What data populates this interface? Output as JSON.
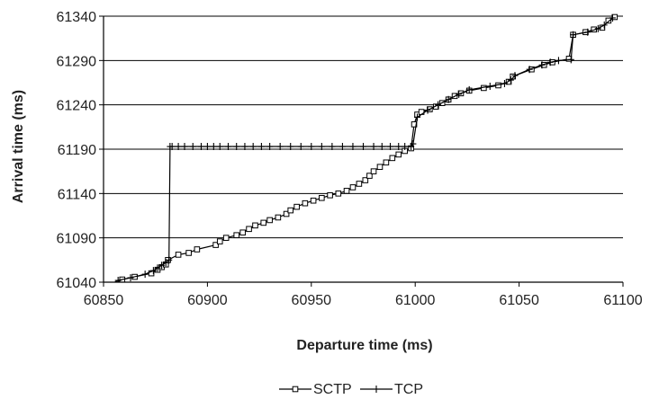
{
  "chart_data": {
    "type": "line",
    "title": "",
    "xlabel": "Departure time (ms)",
    "ylabel": "Arrival time (ms)",
    "xlim": [
      60850,
      61100
    ],
    "ylim": [
      61040,
      61340
    ],
    "x_ticks": [
      "60850",
      "60900",
      "60950",
      "61000",
      "61050",
      "61100"
    ],
    "y_ticks": [
      "61040",
      "61090",
      "61140",
      "61190",
      "61240",
      "61290",
      "61340"
    ],
    "grid": "horizontal",
    "legend_position": "bottom",
    "series": [
      {
        "name": "SCTP",
        "marker": "square",
        "x": [
          60859,
          60865,
          60873,
          60876,
          60878,
          60880,
          60881,
          60886,
          60891,
          60895,
          60904,
          60906,
          60909,
          60914,
          60917,
          60920,
          60923,
          60927,
          60930,
          60934,
          60938,
          60940,
          60943,
          60947,
          60951,
          60955,
          60959,
          60963,
          60967,
          60970,
          60973,
          60976,
          60978,
          60980,
          60983,
          60986,
          60989,
          60992,
          60995,
          60998,
          60999.5,
          61001,
          61003,
          61007,
          61010,
          61013,
          61016,
          61019,
          61022,
          61026,
          61033,
          61040,
          61045,
          61047,
          61056,
          61062,
          61066,
          61074,
          61076,
          61082,
          61086,
          61090,
          61093,
          61096
        ],
        "y": [
          61043,
          61046,
          61050,
          61054,
          61057,
          61060,
          61065,
          61071,
          61073,
          61077,
          61082,
          61086,
          61090,
          61093,
          61096,
          61100,
          61104,
          61107,
          61110,
          61113,
          61117,
          61121,
          61125,
          61129,
          61132,
          61135,
          61138,
          61140,
          61143,
          61147,
          61151,
          61155,
          61160,
          61165,
          61170,
          61175,
          61180,
          61184,
          61188,
          61191,
          61218,
          61229,
          61232,
          61235,
          61238,
          61242,
          61246,
          61250,
          61253,
          61256,
          61259,
          61262,
          61266,
          61272,
          61280,
          61285,
          61288,
          61292,
          61319,
          61322,
          61325,
          61327,
          61335,
          61339
        ]
      },
      {
        "name": "TCP",
        "marker": "plus",
        "x": [
          60857,
          60863,
          60870,
          60874,
          60876,
          60878,
          60880,
          60881.5,
          60882,
          60883,
          60886,
          60889,
          60893,
          60897,
          60900,
          60903,
          60906,
          60910,
          60914,
          60918,
          60922,
          60926,
          60930,
          60935,
          60940,
          60945,
          60950,
          60955,
          60960,
          60965,
          60970,
          60975,
          60980,
          60984,
          60988,
          60992,
          60995,
          60998,
          60999,
          61001,
          61006,
          61011,
          61016,
          61021,
          61026,
          61036,
          61043,
          61046,
          61048,
          61055,
          61061,
          61065,
          61069,
          61075,
          61076,
          61083,
          61088,
          61091,
          61095
        ],
        "y": [
          61042,
          61045,
          61049,
          61053,
          61056,
          61059,
          61062,
          61065,
          61193,
          61193,
          61193,
          61193,
          61193,
          61193,
          61193,
          61193,
          61193,
          61193,
          61193,
          61193,
          61193,
          61193,
          61193,
          61193,
          61193,
          61193,
          61193,
          61193,
          61193,
          61193,
          61193,
          61193,
          61193,
          61193,
          61193,
          61193,
          61193,
          61193,
          61196,
          61226,
          61234,
          61240,
          61246,
          61252,
          61257,
          61261,
          61264,
          61268,
          61273,
          61280,
          61285,
          61288,
          61290,
          61291,
          61319,
          61322,
          61326,
          61330,
          61338
        ]
      }
    ]
  }
}
